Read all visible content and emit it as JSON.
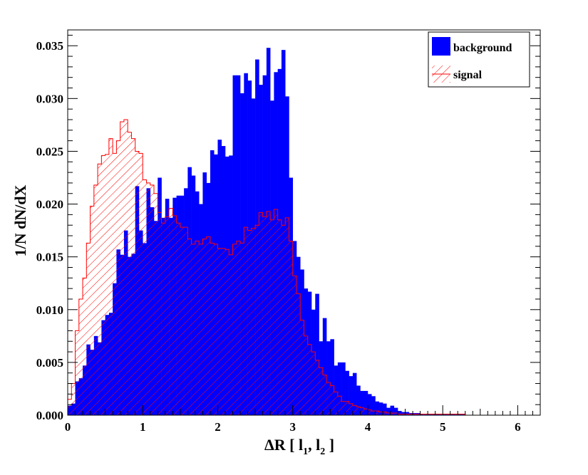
{
  "chart_data": {
    "type": "histogram",
    "title": "",
    "xlabel_main": "ΔR [ l",
    "xlabel_sub1": "1",
    "xlabel_mid": ", l",
    "xlabel_sub2": "2",
    "xlabel_end": " ]",
    "ylabel": "1/N dN/dX",
    "xlim": [
      0,
      6.3
    ],
    "ylim": [
      0,
      0.0365
    ],
    "bin_width": 0.05,
    "x_ticks": [
      "0",
      "1",
      "2",
      "3",
      "4",
      "5",
      "6"
    ],
    "y_ticks": [
      "0.000",
      "0.005",
      "0.010",
      "0.015",
      "0.020",
      "0.025",
      "0.030",
      "0.035"
    ],
    "legend_position": "top-right",
    "colors": {
      "background": "#0000ff",
      "signal": "#ff0000"
    },
    "series": [
      {
        "name": "background",
        "style": "filled",
        "values": [
          0.0009,
          0.0011,
          0.0032,
          0.0035,
          0.0047,
          0.0067,
          0.0062,
          0.0075,
          0.0069,
          0.009,
          0.0095,
          0.0097,
          0.0125,
          0.0157,
          0.0152,
          0.0175,
          0.015,
          0.0153,
          0.0217,
          0.0175,
          0.0163,
          0.0215,
          0.0197,
          0.0184,
          0.0225,
          0.0187,
          0.0205,
          0.0187,
          0.0206,
          0.0208,
          0.0208,
          0.0215,
          0.0235,
          0.0227,
          0.0212,
          0.02,
          0.023,
          0.022,
          0.0251,
          0.0247,
          0.0261,
          0.0255,
          0.0245,
          0.0246,
          0.0322,
          0.0322,
          0.0305,
          0.0324,
          0.0317,
          0.03,
          0.0337,
          0.0313,
          0.0322,
          0.0348,
          0.0298,
          0.0325,
          0.0328,
          0.0346,
          0.0302,
          0.0225,
          0.0165,
          0.015,
          0.0138,
          0.012,
          0.0117,
          0.01,
          0.0115,
          0.007,
          0.0092,
          0.007,
          0.0072,
          0.0047,
          0.005,
          0.005,
          0.0042,
          0.0037,
          0.004,
          0.0028,
          0.0023,
          0.0023,
          0.002,
          0.0018,
          0.0013,
          0.0012,
          0.0011,
          0.0007,
          0.0009,
          0.0007,
          0.0004,
          0.0003,
          0.0003,
          0.0002,
          0.0002,
          0.0002,
          0.0001,
          0.0001,
          0.0001,
          0.0001,
          0.0001,
          0.0001,
          0.0001,
          0.0001,
          0.0001,
          0.0001,
          0.0001,
          0.0001
        ]
      },
      {
        "name": "signal",
        "style": "hatched",
        "values": [
          0.0015,
          0.003,
          0.008,
          0.011,
          0.013,
          0.0163,
          0.0198,
          0.0218,
          0.0238,
          0.0246,
          0.0247,
          0.0262,
          0.0248,
          0.026,
          0.0278,
          0.028,
          0.0268,
          0.0262,
          0.025,
          0.0248,
          0.0223,
          0.022,
          0.0218,
          0.021,
          0.0192,
          0.0182,
          0.0188,
          0.0196,
          0.0189,
          0.0182,
          0.0178,
          0.0178,
          0.0167,
          0.0162,
          0.0165,
          0.0162,
          0.0167,
          0.0169,
          0.0163,
          0.0162,
          0.0158,
          0.0158,
          0.0157,
          0.0152,
          0.0162,
          0.0165,
          0.0163,
          0.0178,
          0.0175,
          0.0177,
          0.018,
          0.0192,
          0.0188,
          0.0193,
          0.0185,
          0.0195,
          0.0185,
          0.018,
          0.0187,
          0.0165,
          0.0132,
          0.0115,
          0.009,
          0.0075,
          0.0067,
          0.006,
          0.0052,
          0.0045,
          0.0038,
          0.0031,
          0.0028,
          0.0022,
          0.0018,
          0.0013,
          0.0013,
          0.0011,
          0.0009,
          0.0008,
          0.0007,
          0.0006,
          0.0005,
          0.0004,
          0.0004,
          0.0003,
          0.0003,
          0.0002,
          0.0002,
          0.0002,
          0.0001,
          0.0001,
          0.0001,
          0.0001,
          0.0001,
          0.0001,
          0.0001,
          0.0001,
          0.0001,
          0.0001,
          0.0001,
          0.0001,
          0.0001,
          0.0001,
          0.0001,
          0.0001,
          0.0001,
          0.0001
        ]
      }
    ]
  }
}
